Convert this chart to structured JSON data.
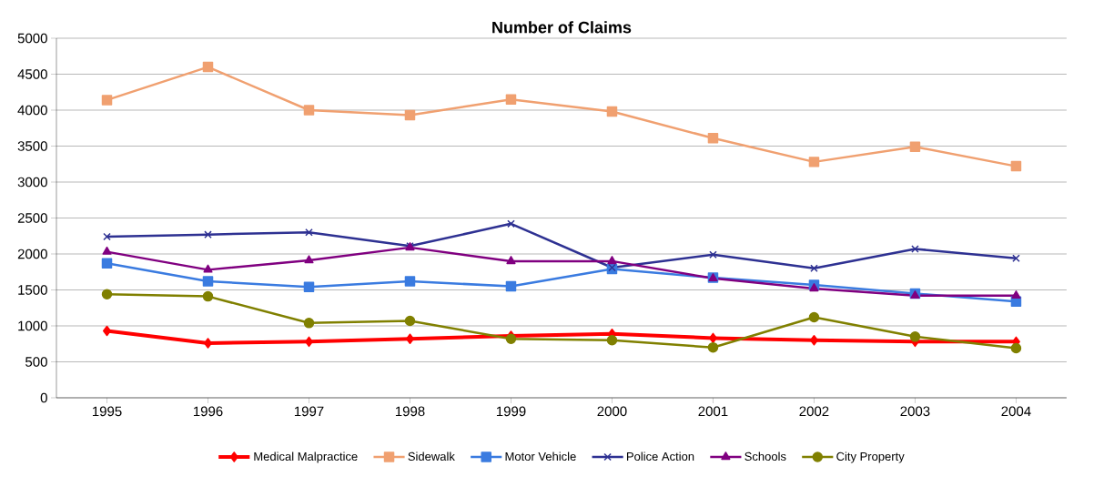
{
  "chart_data": {
    "type": "line",
    "title": "Number of Claims",
    "categories": [
      "1995",
      "1996",
      "1997",
      "1998",
      "1999",
      "2000",
      "2001",
      "2002",
      "2003",
      "2004"
    ],
    "series": [
      {
        "name": "Medical Malpractice",
        "color": "#ff0000",
        "marker": "diamond",
        "values": [
          930,
          760,
          780,
          820,
          860,
          890,
          830,
          800,
          780,
          780
        ]
      },
      {
        "name": "Sidewalk",
        "color": "#f0a070",
        "marker": "square",
        "values": [
          4140,
          4600,
          4000,
          3930,
          4150,
          3980,
          3610,
          3280,
          3490,
          3220
        ]
      },
      {
        "name": "Motor Vehicle",
        "color": "#3a7be0",
        "marker": "square",
        "values": [
          1870,
          1620,
          1540,
          1620,
          1550,
          1790,
          1670,
          1570,
          1450,
          1340
        ]
      },
      {
        "name": "Police Action",
        "color": "#2e3192",
        "marker": "cross",
        "values": [
          2240,
          2270,
          2300,
          2110,
          2420,
          1810,
          1990,
          1800,
          2070,
          1940
        ]
      },
      {
        "name": "Schools",
        "color": "#800080",
        "marker": "triangle",
        "values": [
          2030,
          1780,
          1910,
          2090,
          1900,
          1900,
          1660,
          1520,
          1420,
          1420
        ]
      },
      {
        "name": "City Property",
        "color": "#808000",
        "marker": "circle",
        "values": [
          1440,
          1410,
          1040,
          1070,
          820,
          800,
          700,
          1120,
          850,
          690
        ]
      }
    ],
    "ylim": [
      0,
      5000
    ],
    "yticks": [
      0,
      500,
      1000,
      1500,
      2000,
      2500,
      3000,
      3500,
      4000,
      4500,
      5000
    ],
    "grid": "y",
    "legend": "bottom"
  }
}
